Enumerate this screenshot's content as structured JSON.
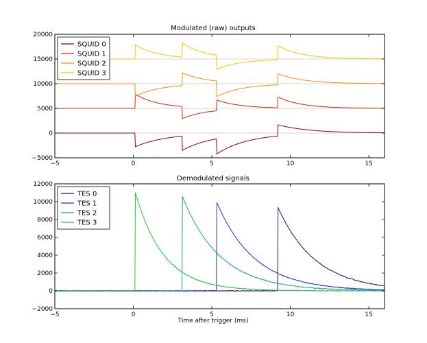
{
  "chart_data": [
    {
      "type": "line",
      "title": "Modulated (raw) outputs",
      "xlabel": "",
      "ylabel": "",
      "xlim": [
        -5,
        16
      ],
      "ylim": [
        -5000,
        20000
      ],
      "xticks": [
        -5,
        0,
        5,
        10,
        15
      ],
      "yticks": [
        -5000,
        0,
        5000,
        10000,
        15000,
        20000
      ],
      "xtick_labels": [
        "−5",
        "0",
        "5",
        "10",
        "15"
      ],
      "ytick_labels": [
        "−5000",
        "0",
        "5000",
        "10000",
        "15000",
        "20000"
      ],
      "baselines": [
        0,
        5000,
        10000,
        15000
      ],
      "legend_position": "top-left",
      "event_times": [
        0.1,
        3.1,
        5.3,
        9.2
      ],
      "series": [
        {
          "name": "SQUID 0",
          "color": "#8b0000",
          "baseline": 0,
          "amplitudes": [
            -2800,
            -2900,
            -3100,
            2300
          ],
          "tau": 2.0
        },
        {
          "name": "SQUID 1",
          "color": "#dd2200",
          "baseline": 5000,
          "amplitudes": [
            2900,
            -2500,
            2200,
            2200
          ],
          "tau": 1.5
        },
        {
          "name": "SQUID 2",
          "color": "#ff8c00",
          "baseline": 10000,
          "amplitudes": [
            -2600,
            2600,
            -3200,
            2300
          ],
          "tau": 1.6
        },
        {
          "name": "SQUID 3",
          "color": "#ffc000",
          "baseline": 15000,
          "amplitudes": [
            2900,
            2900,
            -2900,
            2900
          ],
          "tau": 1.5
        }
      ]
    },
    {
      "type": "line",
      "title": "Demodulated signals",
      "xlabel": "Time after trigger (ms)",
      "ylabel": "",
      "xlim": [
        -5,
        16
      ],
      "ylim": [
        -2000,
        12000
      ],
      "xticks": [
        -5,
        0,
        5,
        10,
        15
      ],
      "yticks": [
        -2000,
        0,
        2000,
        4000,
        6000,
        8000,
        10000,
        12000
      ],
      "xtick_labels": [
        "−5",
        "0",
        "5",
        "10",
        "15"
      ],
      "ytick_labels": [
        "−2000",
        "0",
        "2000",
        "4000",
        "6000",
        "8000",
        "10000",
        "12000"
      ],
      "legend_position": "top-left",
      "series": [
        {
          "name": "TES 0",
          "color": "#2e0e5a",
          "pulse_time": 9.2,
          "peak": 9400,
          "tau": 2.4
        },
        {
          "name": "TES 1",
          "color": "#1f2ee0",
          "pulse_time": 5.3,
          "peak": 10000,
          "tau": 2.4
        },
        {
          "name": "TES 2",
          "color": "#1e9a9a",
          "pulse_time": 3.1,
          "peak": 10700,
          "tau": 2.4
        },
        {
          "name": "TES 3",
          "color": "#22c43a",
          "pulse_time": 0.1,
          "peak": 11200,
          "tau": 1.8
        }
      ]
    }
  ]
}
